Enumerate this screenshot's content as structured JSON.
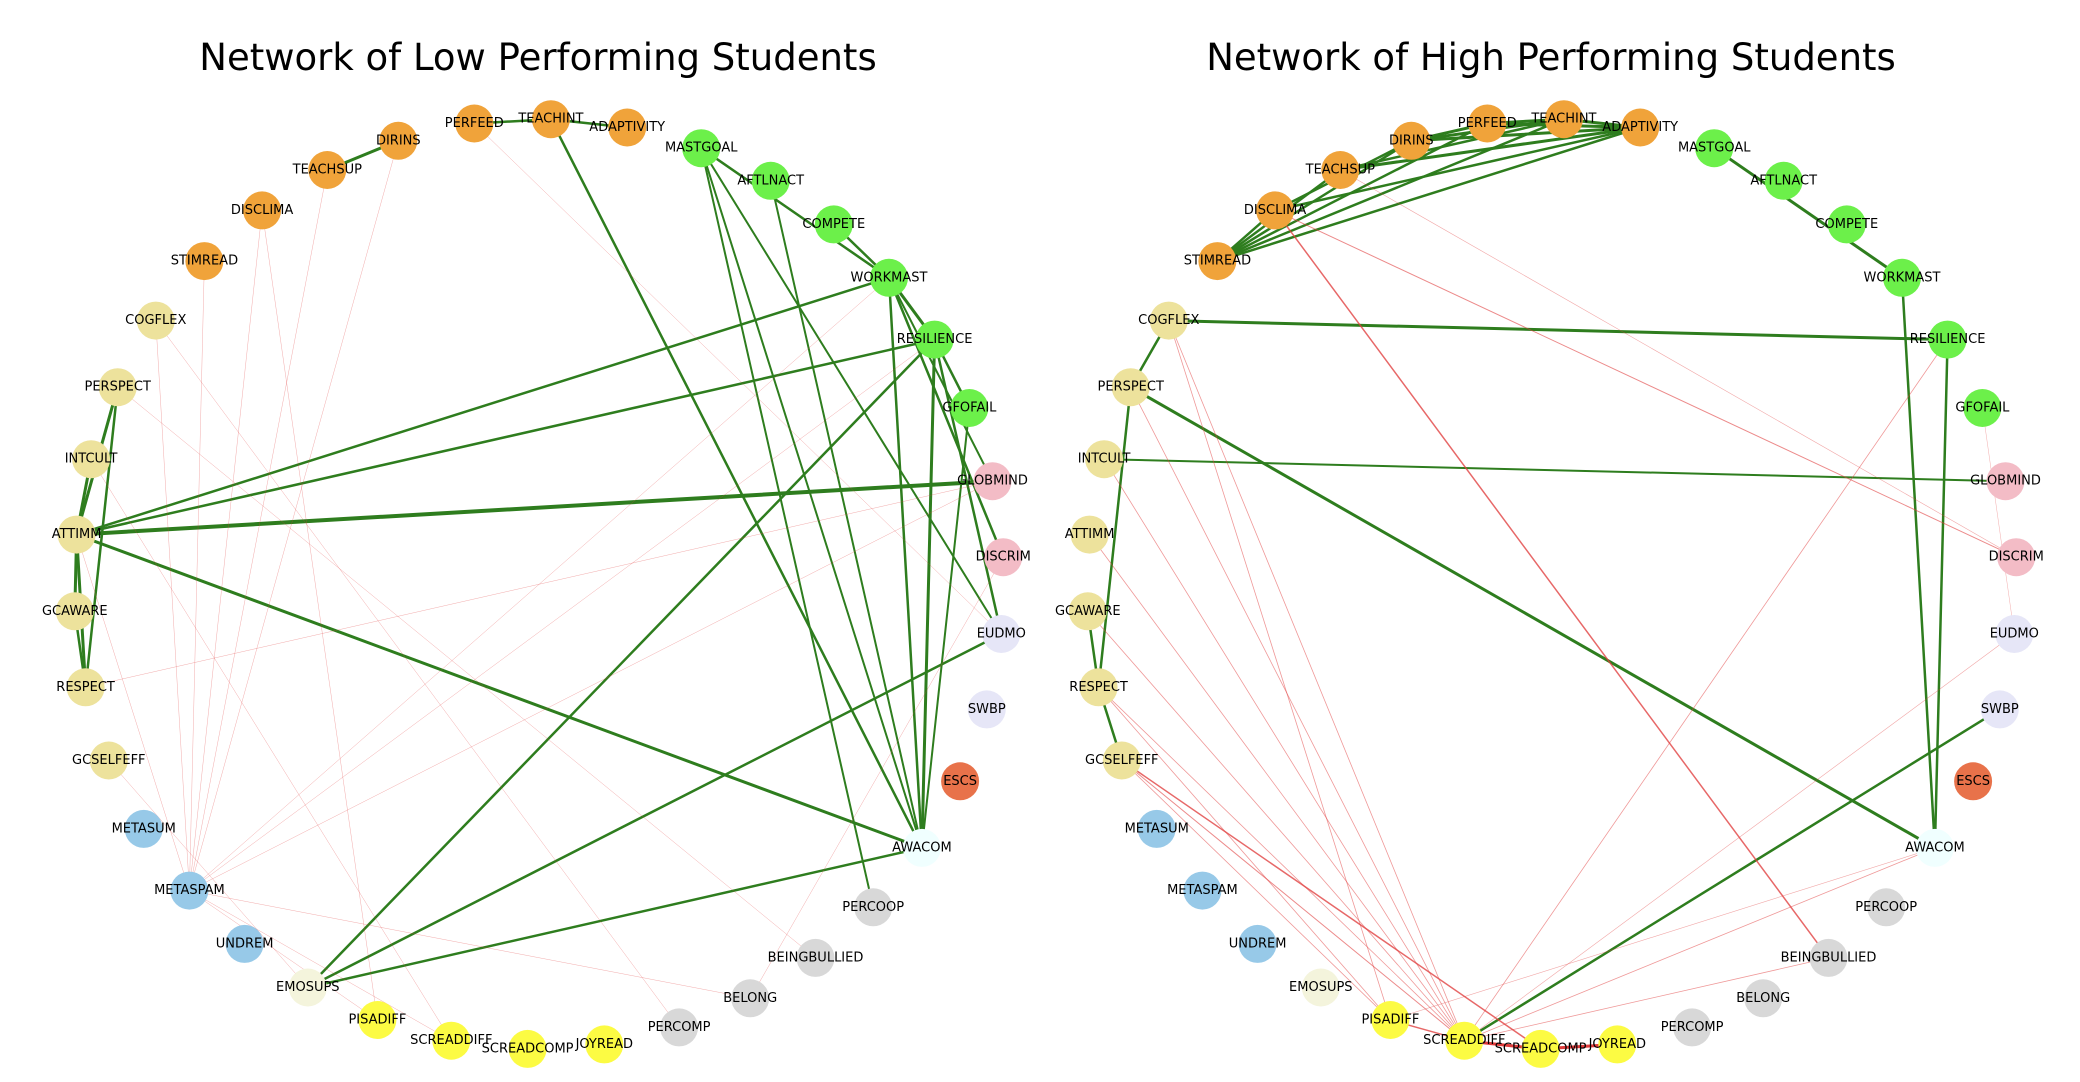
{
  "colors": {
    "orange": "#f0a33a",
    "green": "#6cf04a",
    "khaki": "#ede29c",
    "pink": "#f3bcc6",
    "lavender": "#e6e6f7",
    "coral": "#e8724a",
    "skyblue": "#97c9e8",
    "azure": "#f0ffff",
    "beige": "#f4f4dc",
    "yellow": "#fcfb43",
    "gray": "#d8d8d8",
    "positive_edge": "#2e7d1e",
    "negative_edge": "#e03c3c"
  },
  "nodes": [
    {
      "id": "PERFEED",
      "color": "orange"
    },
    {
      "id": "TEACHINT",
      "color": "orange"
    },
    {
      "id": "ADAPTIVITY",
      "color": "orange"
    },
    {
      "id": "MASTGOAL",
      "color": "green"
    },
    {
      "id": "AFTLNACT",
      "color": "green"
    },
    {
      "id": "COMPETE",
      "color": "green"
    },
    {
      "id": "WORKMAST",
      "color": "green"
    },
    {
      "id": "RESILIENCE",
      "color": "green"
    },
    {
      "id": "GFOFAIL",
      "color": "green"
    },
    {
      "id": "GLOBMIND",
      "color": "pink"
    },
    {
      "id": "DISCRIM",
      "color": "pink"
    },
    {
      "id": "EUDMO",
      "color": "lavender"
    },
    {
      "id": "SWBP",
      "color": "lavender"
    },
    {
      "id": "ESCS",
      "color": "coral"
    },
    {
      "id": "AWACOM",
      "color": "azure"
    },
    {
      "id": "PERCOOP",
      "color": "gray"
    },
    {
      "id": "BEINGBULLIED",
      "color": "gray"
    },
    {
      "id": "BELONG",
      "color": "gray"
    },
    {
      "id": "PERCOMP",
      "color": "gray"
    },
    {
      "id": "JOYREAD",
      "color": "yellow"
    },
    {
      "id": "SCREADCOMP",
      "color": "yellow"
    },
    {
      "id": "SCREADDIFF",
      "color": "yellow"
    },
    {
      "id": "PISADIFF",
      "color": "yellow"
    },
    {
      "id": "EMOSUPS",
      "color": "beige"
    },
    {
      "id": "UNDREM",
      "color": "skyblue"
    },
    {
      "id": "METASPAM",
      "color": "skyblue"
    },
    {
      "id": "METASUM",
      "color": "skyblue"
    },
    {
      "id": "GCSELFEFF",
      "color": "khaki"
    },
    {
      "id": "RESPECT",
      "color": "khaki"
    },
    {
      "id": "GCAWARE",
      "color": "khaki"
    },
    {
      "id": "ATTIMM",
      "color": "khaki"
    },
    {
      "id": "INTCULT",
      "color": "khaki"
    },
    {
      "id": "PERSPECT",
      "color": "khaki"
    },
    {
      "id": "COGFLEX",
      "color": "khaki"
    },
    {
      "id": "STIMREAD",
      "color": "orange"
    },
    {
      "id": "DISCLIMA",
      "color": "orange"
    },
    {
      "id": "TEACHSUP",
      "color": "orange"
    },
    {
      "id": "DIRINS",
      "color": "orange"
    }
  ],
  "panels": [
    {
      "title": "Network of Low Performing Students",
      "edges": [
        {
          "s": "TEACHSUP",
          "t": "DIRINS",
          "sign": "pos",
          "w": 3
        },
        {
          "s": "PERFEED",
          "t": "TEACHINT",
          "sign": "pos",
          "w": 2.5
        },
        {
          "s": "TEACHINT",
          "t": "ADAPTIVITY",
          "sign": "pos",
          "w": 2.5
        },
        {
          "s": "TEACHINT",
          "t": "AWACOM",
          "sign": "pos",
          "w": 2.5
        },
        {
          "s": "MASTGOAL",
          "t": "WORKMAST",
          "sign": "pos",
          "w": 2.5
        },
        {
          "s": "MASTGOAL",
          "t": "AWACOM",
          "sign": "pos",
          "w": 2
        },
        {
          "s": "MASTGOAL",
          "t": "PERCOOP",
          "sign": "pos",
          "w": 2
        },
        {
          "s": "MASTGOAL",
          "t": "EUDMO",
          "sign": "pos",
          "w": 2
        },
        {
          "s": "AFTLNACT",
          "t": "AWACOM",
          "sign": "pos",
          "w": 2
        },
        {
          "s": "COMPETE",
          "t": "WORKMAST",
          "sign": "pos",
          "w": 2.5
        },
        {
          "s": "WORKMAST",
          "t": "RESILIENCE",
          "sign": "pos",
          "w": 3
        },
        {
          "s": "WORKMAST",
          "t": "ATTIMM",
          "sign": "pos",
          "w": 2.5
        },
        {
          "s": "WORKMAST",
          "t": "AWACOM",
          "sign": "pos",
          "w": 2.5
        },
        {
          "s": "WORKMAST",
          "t": "DISCRIM",
          "sign": "pos",
          "w": 2.5
        },
        {
          "s": "WORKMAST",
          "t": "GLOBMIND",
          "sign": "pos",
          "w": 2
        },
        {
          "s": "RESILIENCE",
          "t": "ATTIMM",
          "sign": "pos",
          "w": 2.5
        },
        {
          "s": "RESILIENCE",
          "t": "AWACOM",
          "sign": "pos",
          "w": 3
        },
        {
          "s": "RESILIENCE",
          "t": "EMOSUPS",
          "sign": "pos",
          "w": 2.5
        },
        {
          "s": "RESILIENCE",
          "t": "EUDMO",
          "sign": "pos",
          "w": 2.5
        },
        {
          "s": "RESILIENCE",
          "t": "GFOFAIL",
          "sign": "pos",
          "w": 2.5
        },
        {
          "s": "GFOFAIL",
          "t": "AWACOM",
          "sign": "pos",
          "w": 2
        },
        {
          "s": "ATTIMM",
          "t": "GLOBMIND",
          "sign": "pos",
          "w": 4
        },
        {
          "s": "ATTIMM",
          "t": "AWACOM",
          "sign": "pos",
          "w": 3
        },
        {
          "s": "ATTIMM",
          "t": "PERSPECT",
          "sign": "pos",
          "w": 3
        },
        {
          "s": "ATTIMM",
          "t": "INTCULT",
          "sign": "pos",
          "w": 3
        },
        {
          "s": "ATTIMM",
          "t": "GCAWARE",
          "sign": "pos",
          "w": 3
        },
        {
          "s": "ATTIMM",
          "t": "RESPECT",
          "sign": "pos",
          "w": 3
        },
        {
          "s": "PERSPECT",
          "t": "RESPECT",
          "sign": "pos",
          "w": 2.5
        },
        {
          "s": "GCAWARE",
          "t": "RESPECT",
          "sign": "pos",
          "w": 2.5
        },
        {
          "s": "EMOSUPS",
          "t": "EUDMO",
          "sign": "pos",
          "w": 2.5
        },
        {
          "s": "EMOSUPS",
          "t": "AWACOM",
          "sign": "pos",
          "w": 2.5
        },
        {
          "s": "METASPAM",
          "t": "DIRINS",
          "sign": "neg",
          "w": 0.5
        },
        {
          "s": "METASPAM",
          "t": "TEACHSUP",
          "sign": "neg",
          "w": 0.5
        },
        {
          "s": "METASPAM",
          "t": "DISCLIMA",
          "sign": "neg",
          "w": 0.5
        },
        {
          "s": "METASPAM",
          "t": "STIMREAD",
          "sign": "neg",
          "w": 0.5
        },
        {
          "s": "METASPAM",
          "t": "RESILIENCE",
          "sign": "neg",
          "w": 0.5
        },
        {
          "s": "METASPAM",
          "t": "WORKMAST",
          "sign": "neg",
          "w": 0.5
        },
        {
          "s": "METASPAM",
          "t": "GLOBMIND",
          "sign": "neg",
          "w": 0.5
        },
        {
          "s": "METASPAM",
          "t": "COGFLEX",
          "sign": "neg",
          "w": 0.5
        },
        {
          "s": "METASPAM",
          "t": "ATTIMM",
          "sign": "neg",
          "w": 0.5
        },
        {
          "s": "METASPAM",
          "t": "BELONG",
          "sign": "neg",
          "w": 0.5
        },
        {
          "s": "METASPAM",
          "t": "SCREADDIFF",
          "sign": "neg",
          "w": 0.5
        },
        {
          "s": "METASPAM",
          "t": "PISADIFF",
          "sign": "neg",
          "w": 0.5
        },
        {
          "s": "PISADIFF",
          "t": "DISCLIMA",
          "sign": "neg",
          "w": 0.5
        },
        {
          "s": "SCREADDIFF",
          "t": "INTCULT",
          "sign": "neg",
          "w": 0.5
        },
        {
          "s": "RESPECT",
          "t": "GLOBMIND",
          "sign": "neg",
          "w": 0.5
        },
        {
          "s": "PERFEED",
          "t": "EUDMO",
          "sign": "neg",
          "w": 0.5
        },
        {
          "s": "PERSPECT",
          "t": "BEINGBULLIED",
          "sign": "neg",
          "w": 0.5
        },
        {
          "s": "BELONG",
          "t": "DISCRIM",
          "sign": "neg",
          "w": 0.5
        },
        {
          "s": "PERCOMP",
          "t": "COGFLEX",
          "sign": "neg",
          "w": 0.5
        },
        {
          "s": "EMOSUPS",
          "t": "GCSELFEFF",
          "sign": "neg",
          "w": 0.5
        }
      ]
    },
    {
      "title": "Network of High Performing Students",
      "edges": [
        {
          "s": "DIRINS",
          "t": "TEACHINT",
          "sign": "pos",
          "w": 3
        },
        {
          "s": "DIRINS",
          "t": "ADAPTIVITY",
          "sign": "pos",
          "w": 3
        },
        {
          "s": "DIRINS",
          "t": "STIMREAD",
          "sign": "pos",
          "w": 2.5
        },
        {
          "s": "DIRINS",
          "t": "DISCLIMA",
          "sign": "pos",
          "w": 2.5
        },
        {
          "s": "DIRINS",
          "t": "PERFEED",
          "sign": "pos",
          "w": 3
        },
        {
          "s": "TEACHSUP",
          "t": "ADAPTIVITY",
          "sign": "pos",
          "w": 3
        },
        {
          "s": "TEACHSUP",
          "t": "TEACHINT",
          "sign": "pos",
          "w": 2.5
        },
        {
          "s": "TEACHSUP",
          "t": "STIMREAD",
          "sign": "pos",
          "w": 2.5
        },
        {
          "s": "PERFEED",
          "t": "ADAPTIVITY",
          "sign": "pos",
          "w": 3
        },
        {
          "s": "PERFEED",
          "t": "TEACHINT",
          "sign": "pos",
          "w": 3
        },
        {
          "s": "TEACHINT",
          "t": "ADAPTIVITY",
          "sign": "pos",
          "w": 3
        },
        {
          "s": "STIMREAD",
          "t": "ADAPTIVITY",
          "sign": "pos",
          "w": 2.5
        },
        {
          "s": "STIMREAD",
          "t": "TEACHINT",
          "sign": "pos",
          "w": 2.5
        },
        {
          "s": "STIMREAD",
          "t": "PERFEED",
          "sign": "pos",
          "w": 2.5
        },
        {
          "s": "DISCLIMA",
          "t": "STIMREAD",
          "sign": "pos",
          "w": 2.5
        },
        {
          "s": "DISCLIMA",
          "t": "ADAPTIVITY",
          "sign": "pos",
          "w": 2.5
        },
        {
          "s": "MASTGOAL",
          "t": "WORKMAST",
          "sign": "pos",
          "w": 3
        },
        {
          "s": "WORKMAST",
          "t": "AWACOM",
          "sign": "pos",
          "w": 2.5
        },
        {
          "s": "RESILIENCE",
          "t": "COGFLEX",
          "sign": "pos",
          "w": 3
        },
        {
          "s": "RESILIENCE",
          "t": "AWACOM",
          "sign": "pos",
          "w": 2.5
        },
        {
          "s": "INTCULT",
          "t": "GLOBMIND",
          "sign": "pos",
          "w": 2
        },
        {
          "s": "PERSPECT",
          "t": "AWACOM",
          "sign": "pos",
          "w": 3
        },
        {
          "s": "PERSPECT",
          "t": "COGFLEX",
          "sign": "pos",
          "w": 2.5
        },
        {
          "s": "PERSPECT",
          "t": "RESPECT",
          "sign": "pos",
          "w": 2.5
        },
        {
          "s": "GCAWARE",
          "t": "RESPECT",
          "sign": "pos",
          "w": 2.5
        },
        {
          "s": "RESPECT",
          "t": "GCSELFEFF",
          "sign": "pos",
          "w": 2.5
        },
        {
          "s": "SWBP",
          "t": "SCREADDIFF",
          "sign": "pos",
          "w": 2.5
        },
        {
          "s": "SCREADDIFF",
          "t": "PERSPECT",
          "sign": "neg",
          "w": 0.8
        },
        {
          "s": "SCREADDIFF",
          "t": "COGFLEX",
          "sign": "neg",
          "w": 0.8
        },
        {
          "s": "SCREADDIFF",
          "t": "INTCULT",
          "sign": "neg",
          "w": 0.8
        },
        {
          "s": "SCREADDIFF",
          "t": "ATTIMM",
          "sign": "neg",
          "w": 0.8
        },
        {
          "s": "SCREADDIFF",
          "t": "GCAWARE",
          "sign": "neg",
          "w": 0.8
        },
        {
          "s": "SCREADDIFF",
          "t": "RESPECT",
          "sign": "neg",
          "w": 0.8
        },
        {
          "s": "SCREADDIFF",
          "t": "GCSELFEFF",
          "sign": "neg",
          "w": 1
        },
        {
          "s": "SCREADDIFF",
          "t": "RESILIENCE",
          "sign": "neg",
          "w": 0.8
        },
        {
          "s": "SCREADDIFF",
          "t": "EUDMO",
          "sign": "neg",
          "w": 0.6
        },
        {
          "s": "SCREADDIFF",
          "t": "AWACOM",
          "sign": "neg",
          "w": 0.8
        },
        {
          "s": "SCREADDIFF",
          "t": "BEINGBULLIED",
          "sign": "neg",
          "w": 0.8
        },
        {
          "s": "SCREADDIFF",
          "t": "PISADIFF",
          "sign": "neg",
          "w": 1.5
        },
        {
          "s": "SCREADDIFF",
          "t": "SCREADCOMP",
          "sign": "neg",
          "w": 3
        },
        {
          "s": "SCREADCOMP",
          "t": "JOYREAD",
          "sign": "neg",
          "w": 3
        },
        {
          "s": "PISADIFF",
          "t": "COGFLEX",
          "sign": "neg",
          "w": 0.8
        },
        {
          "s": "PISADIFF",
          "t": "RESPECT",
          "sign": "neg",
          "w": 0.8
        },
        {
          "s": "PISADIFF",
          "t": "GCSELFEFF",
          "sign": "neg",
          "w": 0.8
        },
        {
          "s": "PISADIFF",
          "t": "AWACOM",
          "sign": "neg",
          "w": 0.6
        },
        {
          "s": "GCSELFEFF",
          "t": "SCREADCOMP",
          "sign": "neg",
          "w": 1.5
        },
        {
          "s": "DISCLIMA",
          "t": "BEINGBULLIED",
          "sign": "neg",
          "w": 1.5
        },
        {
          "s": "DISCLIMA",
          "t": "DISCRIM",
          "sign": "neg",
          "w": 1
        },
        {
          "s": "TEACHSUP",
          "t": "DISCRIM",
          "sign": "neg",
          "w": 0.6
        },
        {
          "s": "GFOFAIL",
          "t": "EUDMO",
          "sign": "neg",
          "w": 0.5
        }
      ]
    }
  ]
}
